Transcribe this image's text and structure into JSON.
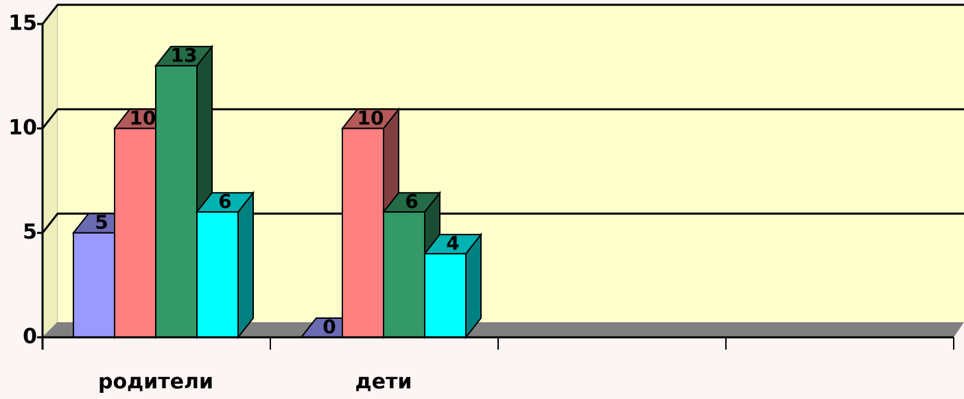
{
  "chart_data": {
    "type": "bar3d",
    "categories": [
      "родители",
      "дети",
      null,
      null
    ],
    "series": [
      {
        "color": "#9999ff",
        "values": [
          5,
          0,
          null,
          null
        ]
      },
      {
        "color": "#ff8080",
        "values": [
          10,
          10,
          null,
          null
        ]
      },
      {
        "color": "#339966",
        "values": [
          13,
          6,
          null,
          null
        ]
      },
      {
        "color": "#00ffff",
        "values": [
          6,
          4,
          null,
          null
        ]
      }
    ],
    "ylim": [
      0,
      15
    ],
    "yticks": [
      0,
      5,
      10,
      15
    ],
    "grid": true,
    "data_labels": true
  }
}
